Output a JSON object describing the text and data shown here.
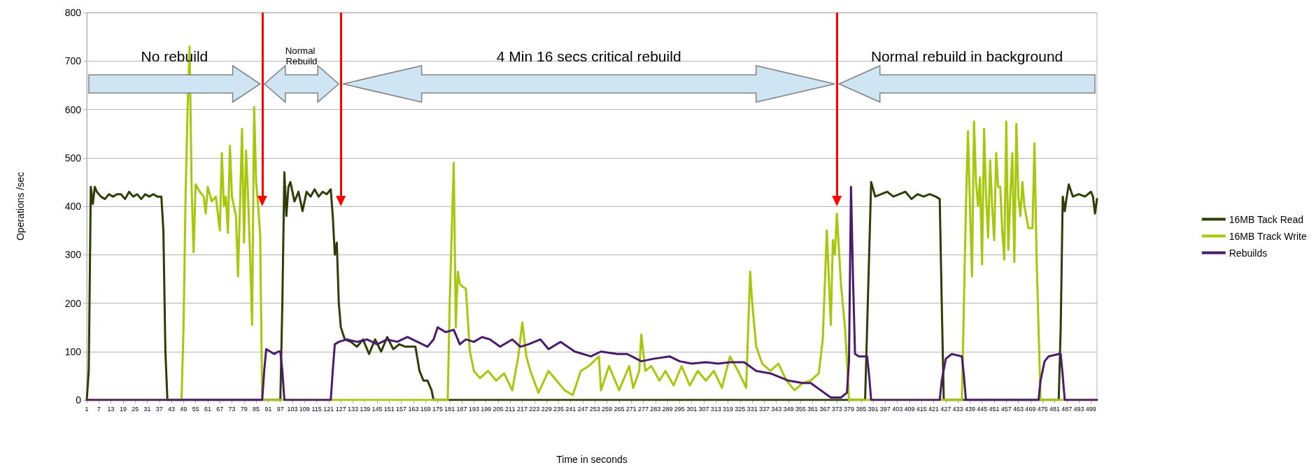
{
  "chart_data": {
    "type": "line",
    "xlabel": "Time in seconds",
    "ylabel": "Operations /sec",
    "xlim": [
      1,
      502
    ],
    "xticks": [
      1,
      7,
      13,
      19,
      25,
      31,
      37,
      43,
      49,
      55,
      61,
      67,
      73,
      79,
      85,
      91,
      97,
      103,
      109,
      115,
      121,
      127,
      133,
      139,
      145,
      151,
      157,
      163,
      169,
      175,
      181,
      187,
      193,
      199,
      205,
      211,
      217,
      223,
      229,
      235,
      241,
      247,
      253,
      259,
      265,
      271,
      277,
      283,
      289,
      295,
      301,
      307,
      313,
      319,
      325,
      331,
      337,
      343,
      349,
      355,
      361,
      367,
      373,
      379,
      385,
      391,
      397,
      403,
      409,
      415,
      421,
      427,
      433,
      439,
      445,
      451,
      457,
      463,
      469,
      475,
      481,
      487,
      493,
      499
    ],
    "ylim": [
      0,
      800
    ],
    "yticks": [
      0,
      100,
      200,
      300,
      400,
      500,
      600,
      700,
      800
    ],
    "grid": "y",
    "legend": "right",
    "series": [
      {
        "name": "16MB Tack Read",
        "color": "#2e3d08",
        "x": [
          1,
          2,
          3,
          4,
          5,
          6,
          8,
          10,
          12,
          14,
          16,
          18,
          20,
          22,
          24,
          26,
          28,
          30,
          32,
          34,
          36,
          38,
          39,
          40,
          41,
          97,
          98,
          99,
          100,
          101,
          102,
          104,
          106,
          108,
          110,
          112,
          114,
          116,
          118,
          120,
          122,
          123,
          124,
          125,
          126,
          127,
          129,
          132,
          135,
          138,
          141,
          144,
          147,
          150,
          153,
          156,
          159,
          162,
          164,
          166,
          168,
          170,
          172,
          173,
          387,
          388,
          389,
          390,
          392,
          395,
          398,
          401,
          404,
          407,
          410,
          413,
          416,
          419,
          422,
          424,
          425,
          426,
          483,
          484,
          485,
          486,
          487,
          488,
          490,
          493,
          496,
          499,
          500,
          501,
          502
        ],
        "values": [
          0,
          60,
          440,
          405,
          440,
          430,
          420,
          415,
          425,
          420,
          425,
          425,
          415,
          430,
          420,
          425,
          415,
          425,
          420,
          425,
          420,
          420,
          350,
          100,
          0,
          0,
          200,
          470,
          380,
          440,
          450,
          410,
          430,
          390,
          430,
          420,
          435,
          420,
          430,
          425,
          435,
          380,
          300,
          325,
          200,
          150,
          125,
          120,
          110,
          125,
          95,
          125,
          100,
          130,
          105,
          115,
          110,
          110,
          110,
          60,
          40,
          40,
          20,
          0,
          0,
          150,
          300,
          450,
          420,
          425,
          430,
          420,
          425,
          430,
          415,
          425,
          420,
          425,
          420,
          415,
          200,
          0,
          0,
          150,
          420,
          390,
          420,
          445,
          420,
          425,
          420,
          430,
          420,
          385,
          415
        ]
      },
      {
        "name": "16MB Track Write",
        "color": "#a6c70a",
        "x": [
          1,
          48,
          49,
          50,
          51,
          52,
          53,
          54,
          55,
          57,
          59,
          60,
          61,
          63,
          65,
          67,
          68,
          69,
          70,
          71,
          72,
          73,
          75,
          76,
          77,
          78,
          79,
          80,
          81,
          82,
          83,
          84,
          85,
          86,
          87,
          88,
          180,
          181,
          182,
          183,
          184,
          185,
          186,
          187,
          189,
          191,
          193,
          196,
          200,
          204,
          208,
          212,
          215,
          217,
          219,
          221,
          225,
          230,
          234,
          238,
          242,
          246,
          250,
          255,
          256,
          260,
          265,
          270,
          272,
          275,
          276,
          278,
          281,
          285,
          288,
          292,
          296,
          300,
          304,
          308,
          312,
          316,
          320,
          324,
          328,
          330,
          331,
          333,
          336,
          340,
          344,
          348,
          352,
          356,
          360,
          364,
          366,
          368,
          370,
          371,
          372,
          373,
          375,
          377,
          378,
          379,
          435,
          436,
          437,
          438,
          439,
          440,
          441,
          442,
          443,
          444,
          445,
          446,
          447,
          448,
          449,
          450,
          451,
          452,
          453,
          454,
          455,
          456,
          457,
          458,
          459,
          460,
          461,
          462,
          463,
          464,
          465,
          466,
          468,
          470,
          471,
          472,
          473,
          474,
          502
        ],
        "values": [
          0,
          0,
          150,
          420,
          600,
          730,
          440,
          305,
          445,
          430,
          420,
          385,
          440,
          410,
          420,
          350,
          510,
          400,
          420,
          345,
          525,
          420,
          380,
          255,
          400,
          560,
          325,
          515,
          420,
          300,
          155,
          605,
          450,
          400,
          340,
          0,
          0,
          200,
          350,
          490,
          150,
          265,
          240,
          235,
          230,
          100,
          60,
          45,
          60,
          40,
          55,
          20,
          90,
          160,
          90,
          60,
          15,
          60,
          40,
          20,
          10,
          60,
          70,
          90,
          20,
          70,
          20,
          70,
          25,
          60,
          135,
          60,
          70,
          40,
          60,
          30,
          70,
          30,
          60,
          40,
          60,
          25,
          90,
          60,
          25,
          265,
          200,
          110,
          75,
          60,
          75,
          40,
          20,
          35,
          40,
          55,
          125,
          350,
          155,
          330,
          300,
          385,
          240,
          150,
          80,
          0,
          0,
          200,
          400,
          555,
          400,
          255,
          575,
          450,
          400,
          460,
          280,
          560,
          420,
          335,
          495,
          400,
          330,
          510,
          440,
          440,
          350,
          290,
          575,
          310,
          420,
          510,
          285,
          570,
          420,
          380,
          450,
          400,
          355,
          355,
          530,
          300,
          150,
          0,
          0
        ]
      },
      {
        "name": "Rebuilds",
        "color": "#4a1b6b",
        "x": [
          1,
          88,
          89,
          90,
          92,
          94,
          96,
          97,
          98,
          99,
          100,
          122,
          123,
          124,
          126,
          130,
          135,
          140,
          145,
          150,
          155,
          160,
          165,
          170,
          173,
          175,
          179,
          183,
          186,
          189,
          193,
          197,
          201,
          206,
          212,
          216,
          220,
          226,
          230,
          236,
          243,
          251,
          256,
          264,
          269,
          276,
          282,
          290,
          295,
          301,
          308,
          314,
          320,
          327,
          333,
          340,
          343,
          349,
          356,
          360,
          365,
          370,
          375,
          378,
          379,
          380,
          381,
          382,
          384,
          388,
          389,
          390,
          424,
          425,
          427,
          430,
          435,
          436,
          437,
          473,
          474,
          476,
          478,
          483,
          484,
          485,
          486,
          502
        ],
        "values": [
          0,
          0,
          60,
          105,
          100,
          95,
          100,
          100,
          60,
          0,
          0,
          0,
          60,
          115,
          120,
          125,
          120,
          125,
          115,
          125,
          120,
          130,
          120,
          110,
          125,
          150,
          140,
          145,
          115,
          125,
          120,
          130,
          125,
          110,
          125,
          110,
          115,
          125,
          105,
          120,
          100,
          90,
          100,
          95,
          95,
          80,
          85,
          90,
          80,
          75,
          78,
          75,
          78,
          78,
          60,
          55,
          50,
          40,
          35,
          35,
          20,
          5,
          5,
          15,
          80,
          440,
          250,
          95,
          90,
          90,
          50,
          0,
          0,
          40,
          85,
          95,
          90,
          50,
          0,
          0,
          40,
          80,
          90,
          95,
          95,
          50,
          0,
          0
        ]
      }
    ],
    "ref_lines": [
      {
        "axis": "x",
        "value": 88,
        "color": "#ff0000"
      },
      {
        "axis": "x",
        "value": 127,
        "color": "#ff0000"
      },
      {
        "axis": "x",
        "value": 373,
        "color": "#ff0000"
      }
    ],
    "annotations": [
      "No rebuild",
      "Normal Rebuild",
      "4 Min 16 secs critical rebuild",
      "Normal rebuild in background"
    ]
  }
}
